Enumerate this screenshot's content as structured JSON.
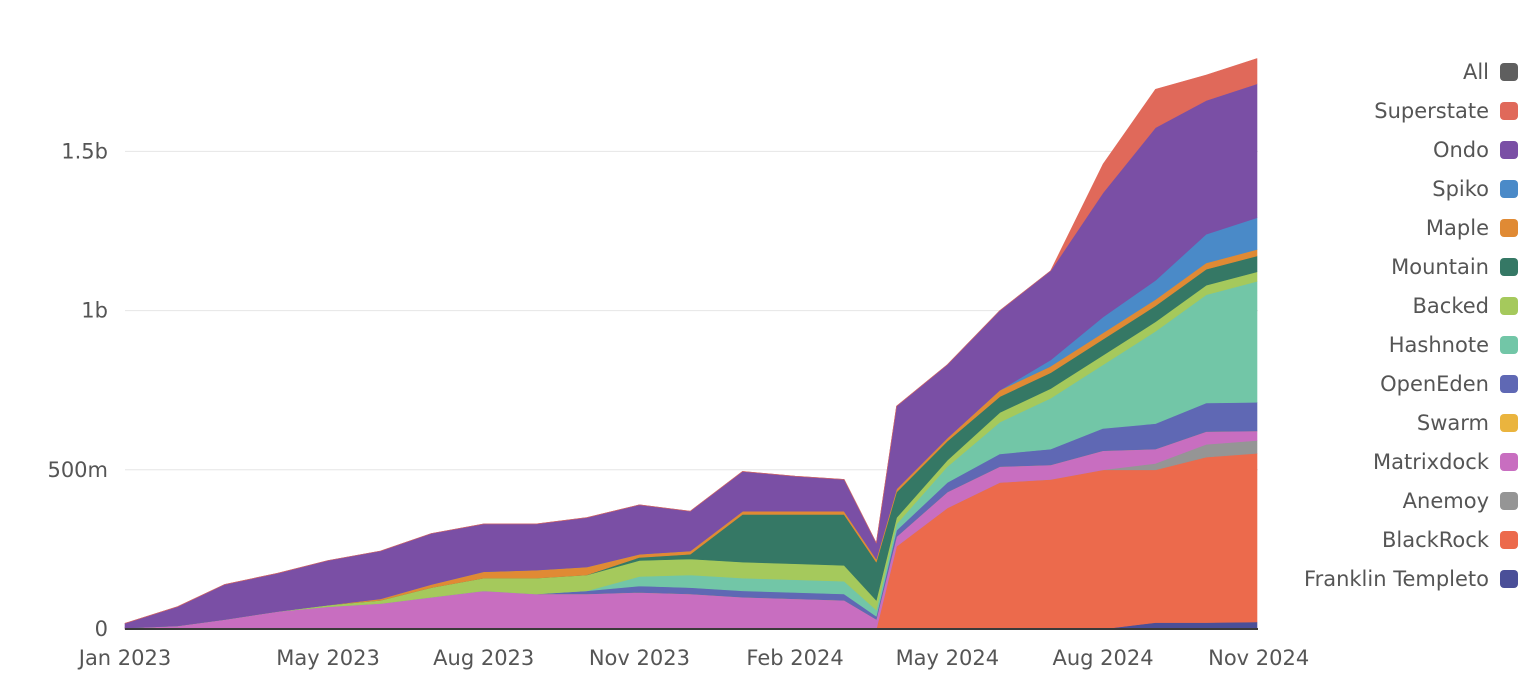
{
  "chart_data": {
    "type": "area",
    "stacked": true,
    "grid": "horizontal",
    "legend_position": "right",
    "x": [
      "2023-01-01",
      "2023-02-01",
      "2023-03-01",
      "2023-04-01",
      "2023-05-01",
      "2023-06-01",
      "2023-07-01",
      "2023-08-01",
      "2023-09-01",
      "2023-10-01",
      "2023-11-01",
      "2023-12-01",
      "2024-01-01",
      "2024-02-01",
      "2024-03-01",
      "2024-03-20",
      "2024-04-01",
      "2024-05-01",
      "2024-06-01",
      "2024-07-01",
      "2024-08-01",
      "2024-09-01",
      "2024-10-01",
      "2024-10-31"
    ],
    "xticks": [
      {
        "date": "2023-01-01",
        "label": "Jan 2023"
      },
      {
        "date": "2023-05-01",
        "label": "May 2023"
      },
      {
        "date": "2023-08-01",
        "label": "Aug 2023"
      },
      {
        "date": "2023-11-01",
        "label": "Nov 2023"
      },
      {
        "date": "2024-02-01",
        "label": "Feb 2024"
      },
      {
        "date": "2024-05-01",
        "label": "May 2024"
      },
      {
        "date": "2024-08-01",
        "label": "Aug 2024"
      },
      {
        "date": "2024-11-01",
        "label": "Nov 2024"
      }
    ],
    "ylim": [
      0,
      1850000000
    ],
    "yticks": [
      {
        "value": 0,
        "label": "0"
      },
      {
        "value": 500000000,
        "label": "500m"
      },
      {
        "value": 1000000000,
        "label": "1b"
      },
      {
        "value": 1500000000,
        "label": "1.5b"
      }
    ],
    "legend": [
      {
        "name": "All",
        "color": "#5f5f5f"
      },
      {
        "name": "Superstate",
        "color": "#e0695a"
      },
      {
        "name": "Ondo",
        "color": "#7a4fa5"
      },
      {
        "name": "Spiko",
        "color": "#4a8ac8"
      },
      {
        "name": "Maple",
        "color": "#e08a34"
      },
      {
        "name": "Mountain",
        "color": "#357865"
      },
      {
        "name": "Backed",
        "color": "#a5c95c"
      },
      {
        "name": "Hashnote",
        "color": "#72c6a7"
      },
      {
        "name": "OpenEden",
        "color": "#5f68b4"
      },
      {
        "name": "Swarm",
        "color": "#eab43e"
      },
      {
        "name": "Matrixdock",
        "color": "#c86ec0"
      },
      {
        "name": "Anemoy",
        "color": "#959595"
      },
      {
        "name": "BlackRock",
        "color": "#ec6a4c"
      },
      {
        "name": "Franklin Templeto",
        "color": "#4a4f98"
      }
    ],
    "series": [
      {
        "name": "Franklin Templeto",
        "color": "#4a4f98",
        "values": [
          0,
          0,
          0,
          0,
          0,
          0,
          0,
          0,
          0,
          0,
          0,
          0,
          0,
          0,
          0,
          0,
          0,
          0,
          0,
          0,
          0,
          20000000,
          20000000,
          22000000
        ]
      },
      {
        "name": "BlackRock",
        "color": "#ec6a4c",
        "values": [
          0,
          0,
          0,
          0,
          0,
          0,
          0,
          0,
          0,
          0,
          0,
          0,
          0,
          0,
          0,
          0,
          260000000,
          380000000,
          460000000,
          470000000,
          500000000,
          480000000,
          520000000,
          530000000
        ]
      },
      {
        "name": "Anemoy",
        "color": "#959595",
        "values": [
          0,
          0,
          0,
          0,
          0,
          0,
          0,
          0,
          0,
          0,
          0,
          0,
          0,
          0,
          0,
          0,
          0,
          0,
          0,
          0,
          0,
          20000000,
          40000000,
          40000000
        ]
      },
      {
        "name": "Matrixdock",
        "color": "#c86ec0",
        "values": [
          3000000,
          10000000,
          30000000,
          55000000,
          70000000,
          80000000,
          100000000,
          120000000,
          110000000,
          110000000,
          115000000,
          110000000,
          100000000,
          95000000,
          90000000,
          30000000,
          30000000,
          50000000,
          50000000,
          45000000,
          60000000,
          45000000,
          40000000,
          30000000
        ]
      },
      {
        "name": "Swarm",
        "color": "#eab43e",
        "values": [
          0,
          0,
          0,
          0,
          0,
          0,
          0,
          0,
          0,
          0,
          0,
          0,
          0,
          0,
          0,
          0,
          0,
          0,
          0,
          0,
          0,
          0,
          0,
          0
        ]
      },
      {
        "name": "OpenEden",
        "color": "#5f68b4",
        "values": [
          0,
          0,
          0,
          0,
          0,
          0,
          0,
          0,
          0,
          10000000,
          20000000,
          20000000,
          20000000,
          20000000,
          20000000,
          10000000,
          20000000,
          30000000,
          40000000,
          50000000,
          70000000,
          80000000,
          90000000,
          90000000
        ]
      },
      {
        "name": "Hashnote",
        "color": "#72c6a7",
        "values": [
          0,
          0,
          0,
          0,
          0,
          0,
          0,
          0,
          0,
          0,
          30000000,
          40000000,
          40000000,
          40000000,
          40000000,
          20000000,
          20000000,
          50000000,
          100000000,
          160000000,
          200000000,
          290000000,
          340000000,
          380000000
        ]
      },
      {
        "name": "Backed",
        "color": "#a5c95c",
        "values": [
          0,
          0,
          0,
          0,
          5000000,
          10000000,
          30000000,
          40000000,
          50000000,
          50000000,
          50000000,
          50000000,
          50000000,
          50000000,
          50000000,
          30000000,
          20000000,
          20000000,
          30000000,
          30000000,
          30000000,
          30000000,
          30000000,
          30000000
        ]
      },
      {
        "name": "Mountain",
        "color": "#357865",
        "values": [
          0,
          0,
          0,
          0,
          0,
          0,
          0,
          0,
          0,
          0,
          10000000,
          15000000,
          150000000,
          155000000,
          160000000,
          120000000,
          80000000,
          60000000,
          50000000,
          50000000,
          50000000,
          50000000,
          50000000,
          50000000
        ]
      },
      {
        "name": "Maple",
        "color": "#e08a34",
        "values": [
          0,
          0,
          0,
          0,
          0,
          5000000,
          10000000,
          20000000,
          25000000,
          25000000,
          10000000,
          10000000,
          10000000,
          10000000,
          10000000,
          10000000,
          10000000,
          10000000,
          20000000,
          20000000,
          20000000,
          20000000,
          20000000,
          20000000
        ]
      },
      {
        "name": "Spiko",
        "color": "#4a8ac8",
        "values": [
          0,
          0,
          0,
          0,
          0,
          0,
          0,
          0,
          0,
          0,
          0,
          0,
          0,
          0,
          0,
          0,
          0,
          0,
          0,
          20000000,
          50000000,
          60000000,
          90000000,
          100000000
        ]
      },
      {
        "name": "Ondo",
        "color": "#7a4fa5",
        "values": [
          15000000,
          60000000,
          110000000,
          120000000,
          140000000,
          150000000,
          160000000,
          150000000,
          145000000,
          155000000,
          155000000,
          125000000,
          125000000,
          110000000,
          100000000,
          50000000,
          260000000,
          230000000,
          250000000,
          280000000,
          390000000,
          480000000,
          420000000,
          420000000
        ]
      },
      {
        "name": "Superstate",
        "color": "#e0695a",
        "values": [
          0,
          0,
          0,
          0,
          0,
          0,
          0,
          0,
          0,
          0,
          0,
          0,
          0,
          0,
          0,
          0,
          0,
          0,
          0,
          0,
          90000000,
          120000000,
          80000000,
          80000000
        ]
      }
    ]
  }
}
